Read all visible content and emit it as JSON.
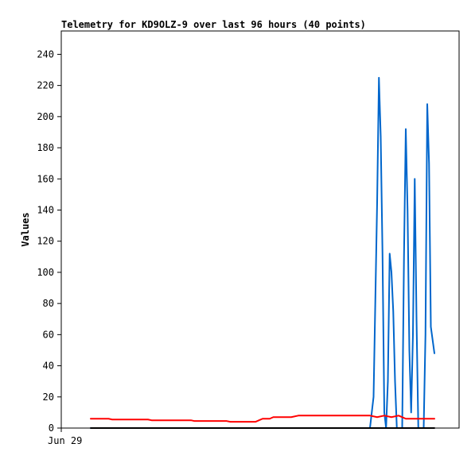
{
  "chart_data": {
    "type": "line",
    "title": "Telemetry for KD9OLZ-9 over last 96 hours (40 points)",
    "xlabel": "",
    "ylabel": "Values",
    "x_tick_labels": [
      "Jun 29"
    ],
    "ylim": [
      0,
      255
    ],
    "y_ticks": [
      0,
      20,
      40,
      60,
      80,
      100,
      120,
      140,
      160,
      180,
      200,
      220,
      240
    ],
    "grid": false,
    "legend": "none",
    "series": [
      {
        "color": "#0066cc",
        "points": [
          [
            0.0,
            0
          ],
          [
            0.78,
            0
          ],
          [
            0.79,
            20
          ],
          [
            0.8,
            145
          ],
          [
            0.805,
            225
          ],
          [
            0.81,
            187
          ],
          [
            0.815,
            112
          ],
          [
            0.82,
            10
          ],
          [
            0.825,
            0
          ],
          [
            0.83,
            30
          ],
          [
            0.835,
            112
          ],
          [
            0.84,
            100
          ],
          [
            0.845,
            75
          ],
          [
            0.85,
            30
          ],
          [
            0.855,
            0
          ],
          [
            0.87,
            0
          ],
          [
            0.875,
            110
          ],
          [
            0.88,
            192
          ],
          [
            0.885,
            140
          ],
          [
            0.89,
            50
          ],
          [
            0.895,
            10
          ],
          [
            0.9,
            60
          ],
          [
            0.905,
            160
          ],
          [
            0.91,
            70
          ],
          [
            0.915,
            0
          ],
          [
            0.93,
            0
          ],
          [
            0.935,
            60
          ],
          [
            0.94,
            208
          ],
          [
            0.945,
            170
          ],
          [
            0.95,
            65
          ],
          [
            0.96,
            48
          ]
        ]
      },
      {
        "color": "#ff0000",
        "points": [
          [
            0.0,
            6
          ],
          [
            0.05,
            6
          ],
          [
            0.06,
            5.5
          ],
          [
            0.16,
            5.5
          ],
          [
            0.17,
            5
          ],
          [
            0.28,
            5
          ],
          [
            0.29,
            4.5
          ],
          [
            0.38,
            4.5
          ],
          [
            0.39,
            4
          ],
          [
            0.46,
            4
          ],
          [
            0.48,
            6
          ],
          [
            0.5,
            6
          ],
          [
            0.51,
            7
          ],
          [
            0.56,
            7
          ],
          [
            0.58,
            8
          ],
          [
            0.78,
            8
          ],
          [
            0.8,
            7
          ],
          [
            0.82,
            8
          ],
          [
            0.84,
            7
          ],
          [
            0.86,
            8
          ],
          [
            0.88,
            6
          ],
          [
            0.96,
            6
          ]
        ]
      },
      {
        "color": "#000000",
        "points": [
          [
            0.0,
            0
          ],
          [
            0.96,
            0
          ]
        ]
      }
    ]
  }
}
